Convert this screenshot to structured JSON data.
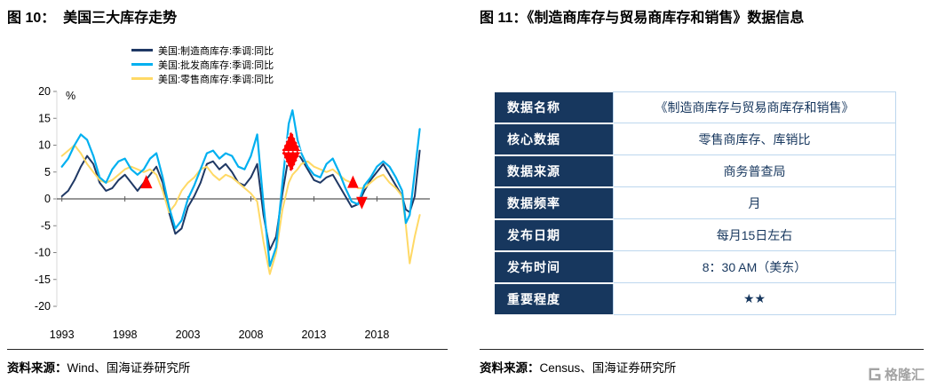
{
  "figure10": {
    "title": "图 10：  美国三大库存走势",
    "source_label": "资料来源：",
    "source_value": "Wind、国海证券研究所"
  },
  "figure11": {
    "title": "图 11：《制造商库存与贸易商库存和销售》数据信息",
    "source_label": "资料来源：",
    "source_value": "Census、国海证券研究所",
    "table": {
      "rows": [
        {
          "label": "数据名称",
          "value": "《制造商库存与贸易商库存和销售》"
        },
        {
          "label": "核心数据",
          "value": "零售商库存、库销比"
        },
        {
          "label": "数据来源",
          "value": "商务普查局"
        },
        {
          "label": "数据频率",
          "value": "月"
        },
        {
          "label": "发布日期",
          "value": "每月15日左右"
        },
        {
          "label": "发布时间",
          "value": "8：30 AM（美东）"
        },
        {
          "label": "重要程度",
          "value": "★★"
        }
      ]
    }
  },
  "watermark": {
    "text": "格隆汇"
  },
  "chart_data": {
    "type": "line",
    "title": "美国三大库存走势",
    "y_unit": "%",
    "ylim": [
      -20,
      20
    ],
    "y_ticks": [
      20,
      15,
      10,
      5,
      0,
      -5,
      -10,
      -15,
      -20
    ],
    "x_range": [
      1992.6,
      2022.2
    ],
    "x_ticks": [
      1993,
      1998,
      2003,
      2008,
      2013,
      2018
    ],
    "grid": false,
    "legend_position": "top",
    "annotation_color": "#ff0000",
    "x": [
      1993.0,
      1993.5,
      1994.0,
      1994.5,
      1995.0,
      1995.5,
      1996.0,
      1996.5,
      1997.0,
      1997.5,
      1998.0,
      1998.5,
      1999.0,
      1999.5,
      2000.0,
      2000.5,
      2001.0,
      2001.5,
      2002.0,
      2002.5,
      2003.0,
      2003.5,
      2004.0,
      2004.5,
      2005.0,
      2005.5,
      2006.0,
      2006.5,
      2007.0,
      2007.5,
      2008.0,
      2008.5,
      2009.0,
      2009.5,
      2010.0,
      2010.5,
      2011.0,
      2011.3,
      2011.7,
      2012.0,
      2012.5,
      2013.0,
      2013.5,
      2014.0,
      2014.5,
      2015.0,
      2015.5,
      2016.0,
      2016.5,
      2017.0,
      2017.5,
      2018.0,
      2018.5,
      2019.0,
      2019.5,
      2020.0,
      2020.3,
      2020.6,
      2021.0,
      2021.4
    ],
    "series": [
      {
        "name": "美国:制造商库存:季调:同比",
        "color": "#1f3864",
        "values": [
          0.5,
          1.5,
          3.5,
          6,
          8,
          6.5,
          3,
          1.5,
          2,
          3.5,
          4.5,
          3,
          1.5,
          3,
          4.5,
          6,
          3,
          -2.5,
          -6.5,
          -5.5,
          -1.5,
          0.5,
          3,
          6.5,
          7,
          5.5,
          6.5,
          5,
          3,
          2.5,
          4,
          6.5,
          -3,
          -9.5,
          -7,
          1,
          8,
          9.5,
          8.5,
          7.5,
          5.5,
          3.5,
          3,
          4,
          4.5,
          2.5,
          0.5,
          -1.5,
          -1,
          1.5,
          3.5,
          5,
          6.5,
          4.5,
          2.5,
          0.5,
          -2,
          -2.5,
          0.5,
          9
        ]
      },
      {
        "name": "美国:批发商库存:季调:同比",
        "color": "#00b0f0",
        "values": [
          6,
          7.5,
          10,
          12,
          11,
          8,
          4,
          3,
          5.5,
          7,
          7.5,
          5.5,
          4.5,
          5.5,
          7.5,
          8.5,
          4,
          -1.5,
          -5.5,
          -4,
          0,
          2.5,
          5.5,
          8.5,
          9,
          7.5,
          8.5,
          8,
          6,
          5.5,
          8,
          12,
          -1,
          -12.5,
          -9,
          3,
          14,
          16.5,
          11,
          8.5,
          6,
          4.5,
          4,
          6.5,
          7.5,
          5,
          2,
          -0.5,
          -1,
          2.5,
          4,
          6,
          7,
          6,
          4,
          1.5,
          -4.5,
          -3,
          5,
          13
        ]
      },
      {
        "name": "美国:零售商库存:季调:同比",
        "color": "#ffd966",
        "values": [
          8,
          9,
          10,
          8.5,
          6.5,
          5,
          3.5,
          3,
          3.5,
          4.5,
          5.5,
          6,
          5.5,
          5,
          5.5,
          4.5,
          1.5,
          -2.5,
          -1,
          1.5,
          3,
          4,
          5.5,
          6,
          4.5,
          3.5,
          4.5,
          4,
          3,
          2,
          1,
          -0.5,
          -8,
          -14,
          -10,
          -2,
          3,
          4.5,
          5.5,
          6.5,
          7,
          6,
          5.5,
          5,
          5.5,
          4.5,
          3.5,
          3,
          2,
          2,
          3,
          4,
          4.5,
          3,
          2,
          0.5,
          -5,
          -12,
          -7,
          -3
        ]
      }
    ],
    "annotations": [
      {
        "x": 1999.7,
        "y": 3.2,
        "dir": "up",
        "size": 15,
        "dashed": false
      },
      {
        "x": 2011.2,
        "y": 10.8,
        "dir": "up",
        "size": 24,
        "dashed": true
      },
      {
        "x": 2011.2,
        "y": 6.8,
        "dir": "down",
        "size": 24,
        "dashed": true
      },
      {
        "x": 2016.1,
        "y": 3.2,
        "dir": "up",
        "size": 14,
        "dashed": false
      },
      {
        "x": 2016.8,
        "y": -0.8,
        "dir": "down",
        "size": 14,
        "dashed": false
      }
    ]
  }
}
